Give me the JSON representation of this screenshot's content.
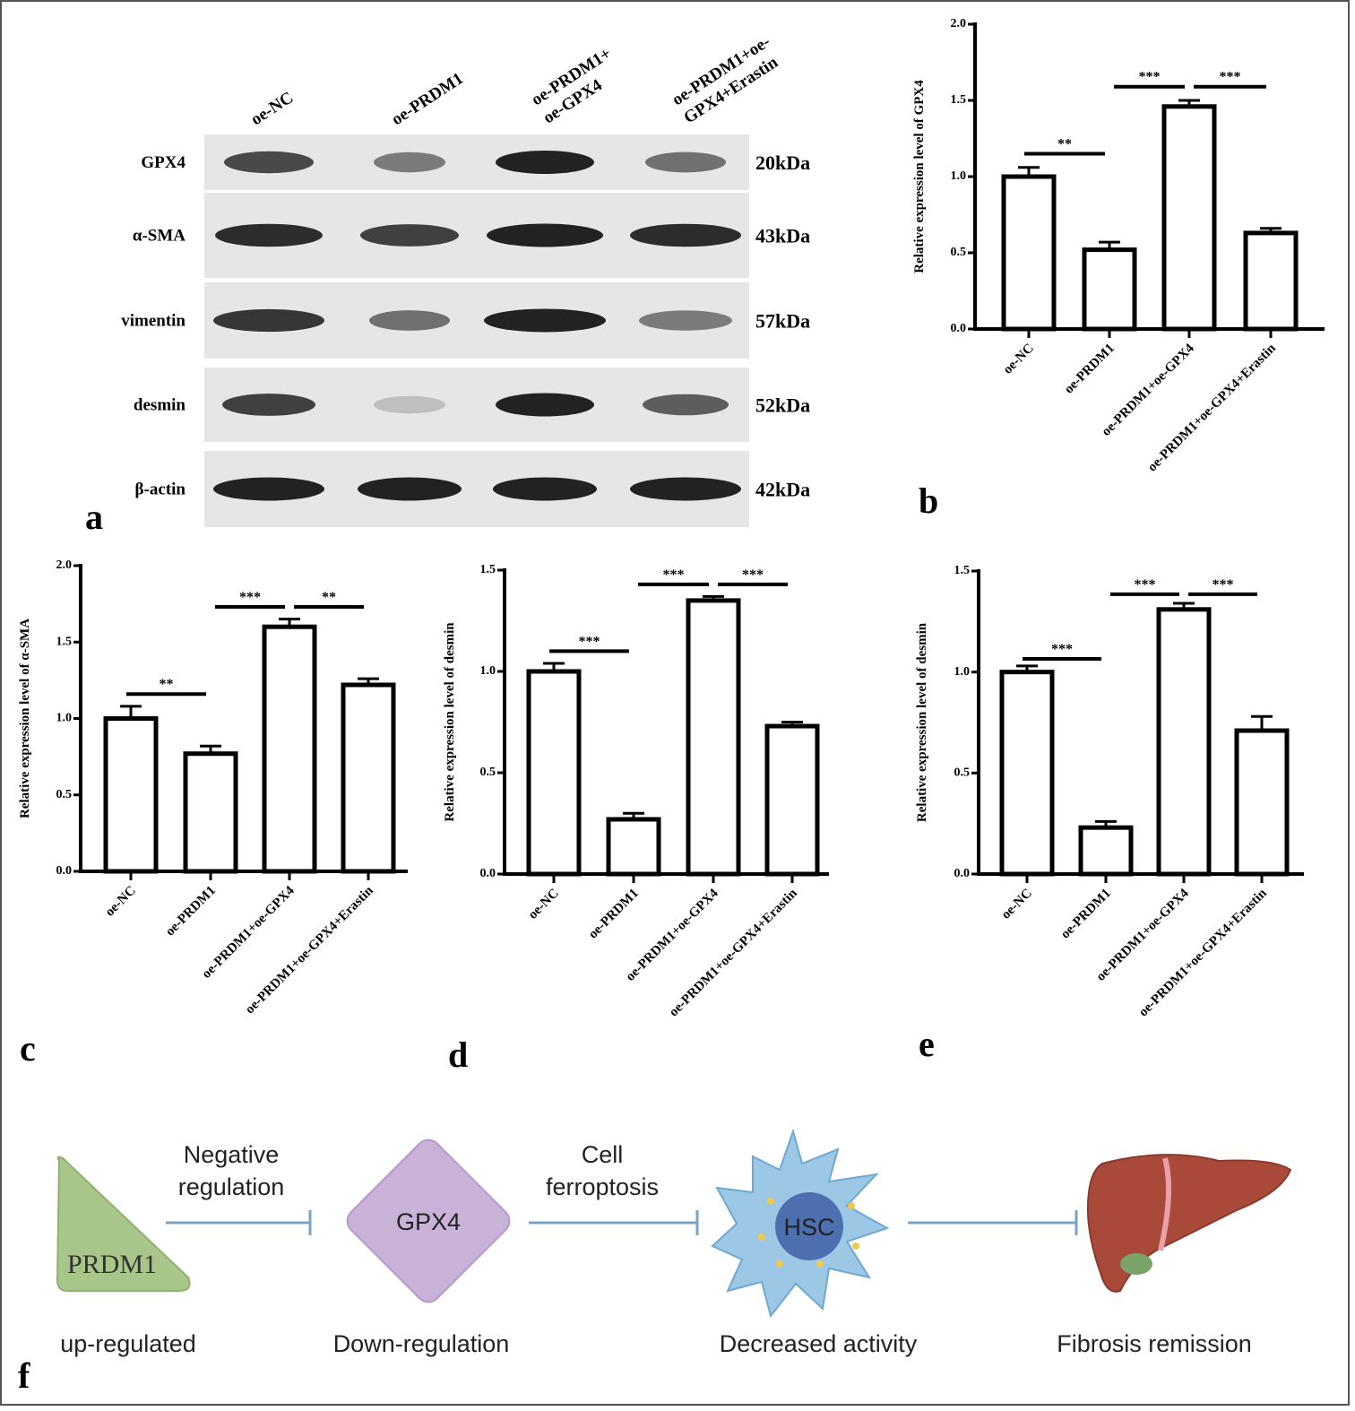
{
  "panel_a": {
    "label": "a",
    "lanes": [
      [
        "oe-NC"
      ],
      [
        "oe-PRDM1"
      ],
      [
        "oe-PRDM1+",
        "oe-GPX4"
      ],
      [
        "oe-PRDM1+oe-",
        "GPX4+Erastin"
      ]
    ],
    "rows": [
      {
        "protein": "GPX4",
        "size": "20kDa"
      },
      {
        "protein": "α-SMA",
        "size": "43kDa"
      },
      {
        "protein": "vimentin",
        "size": "57kDa"
      },
      {
        "protein": "desmin",
        "size": "52kDa"
      },
      {
        "protein": "β-actin",
        "size": "42kDa"
      }
    ]
  },
  "chart_data": [
    {
      "type": "bar",
      "label": "b",
      "y_label": "Relative expression level of GPX4",
      "categories": [
        "oe-NC",
        "oe-PRDM1",
        "oe-PRDM1+oe-GPX4",
        "oe-PRDM1+oe-GPX4+Erastin"
      ],
      "values": [
        1.0,
        0.52,
        1.46,
        0.63
      ],
      "errors": [
        0.06,
        0.05,
        0.04,
        0.03
      ],
      "ylim": [
        0,
        2
      ],
      "yticks": [
        {
          "value": 0,
          "label": "0.0"
        },
        0.5,
        {
          "value": 1,
          "label": "1.0"
        },
        1.5,
        {
          "value": 2,
          "label": "2.0"
        }
      ],
      "annotations": [
        {
          "label": "**",
          "between": [
            "oe-NC",
            "oe-PRDM1"
          ],
          "y": 1.15
        },
        {
          "label": "***",
          "between": [
            "oe-PRDM1",
            "oe-PRDM1+oe-GPX4"
          ],
          "y": 1.59
        },
        {
          "label": "***",
          "between": [
            "oe-PRDM1+oe-GPX4",
            "oe-PRDM1+oe-GPX4+Erastin"
          ],
          "y": 1.59
        }
      ]
    },
    {
      "type": "bar",
      "label": "c",
      "y_label": "Relative expression level of α-SMA",
      "categories": [
        "oe-NC",
        "oe-PRDM1",
        "oe-PRDM1+oe-GPX4",
        "oe-PRDM1+oe-GPX4+Erastin"
      ],
      "values": [
        1.0,
        0.77,
        1.6,
        1.22
      ],
      "errors": [
        0.08,
        0.05,
        0.05,
        0.04
      ],
      "ylim": [
        0,
        2
      ],
      "yticks": [
        {
          "value": 0,
          "label": "0.0"
        },
        0.5,
        {
          "value": 1,
          "label": "1.0"
        },
        1.5,
        {
          "value": 2,
          "label": "2.0"
        }
      ],
      "annotations": [
        {
          "label": "**",
          "between": [
            "oe-NC",
            "oe-PRDM1"
          ],
          "y": 1.16
        },
        {
          "label": "***",
          "between": [
            "oe-PRDM1",
            "oe-PRDM1+oe-GPX4"
          ],
          "y": 1.73
        },
        {
          "label": "**",
          "between": [
            "oe-PRDM1+oe-GPX4",
            "oe-PRDM1+oe-GPX4+Erastin"
          ],
          "y": 1.73
        }
      ]
    },
    {
      "type": "bar",
      "label": "d",
      "y_label": "Relative expression level of desmin",
      "categories": [
        "oe-NC",
        "oe-PRDM1",
        "oe-PRDM1+oe-GPX4",
        "oe-PRDM1+oe-GPX4+Erastin"
      ],
      "values": [
        1.0,
        0.27,
        1.35,
        0.73
      ],
      "errors": [
        0.04,
        0.03,
        0.02,
        0.02
      ],
      "ylim": [
        0,
        1.5
      ],
      "yticks": [
        {
          "value": 0,
          "label": "0.0"
        },
        0.5,
        {
          "value": 1,
          "label": "1.0"
        },
        1.5
      ],
      "annotations": [
        {
          "label": "***",
          "between": [
            "oe-NC",
            "oe-PRDM1"
          ],
          "y": 1.1
        },
        {
          "label": "***",
          "between": [
            "oe-PRDM1",
            "oe-PRDM1+oe-GPX4"
          ],
          "y": 1.43
        },
        {
          "label": "***",
          "between": [
            "oe-PRDM1+oe-GPX4",
            "oe-PRDM1+oe-GPX4+Erastin"
          ],
          "y": 1.43
        }
      ]
    },
    {
      "type": "bar",
      "label": "e",
      "y_label": "Relative expression level of desmin",
      "categories": [
        "oe-NC",
        "oe-PRDM1",
        "oe-PRDM1+oe-GPX4",
        "oe-PRDM1+oe-GPX4+Erastin"
      ],
      "values": [
        1.0,
        0.23,
        1.31,
        0.71
      ],
      "errors": [
        0.03,
        0.03,
        0.03,
        0.07
      ],
      "ylim": [
        0,
        1.5
      ],
      "yticks": [
        {
          "value": 0,
          "label": "0.0"
        },
        0.5,
        {
          "value": 1,
          "label": "1.0"
        },
        1.5
      ],
      "annotations": [
        {
          "label": "***",
          "between": [
            "oe-NC",
            "oe-PRDM1"
          ],
          "y": 1.065
        },
        {
          "label": "***",
          "between": [
            "oe-PRDM1",
            "oe-PRDM1+oe-GPX4"
          ],
          "y": 1.385
        },
        {
          "label": "***",
          "between": [
            "oe-PRDM1+oe-GPX4",
            "oe-PRDM1+oe-GPX4+Erastin"
          ],
          "y": 1.385
        }
      ]
    }
  ],
  "panel_f": {
    "label": "f",
    "nodes": [
      {
        "label": "PRDM1",
        "caption": "up-regulated"
      },
      {
        "label": "GPX4",
        "caption": "Down-regulation"
      },
      {
        "label": "HSC",
        "caption": "Decreased activity"
      },
      {
        "caption": "Fibrosis remission"
      }
    ],
    "edges": [
      [
        "Negative",
        "regulation"
      ],
      [
        "Cell",
        "ferroptosis"
      ],
      []
    ]
  }
}
